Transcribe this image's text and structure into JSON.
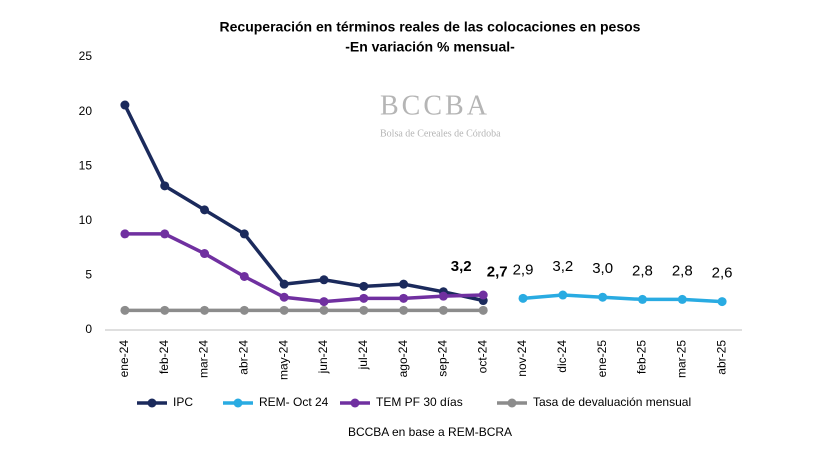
{
  "chart_data": {
    "type": "line",
    "title": "Recuperación en términos reales de las colocaciones en pesos",
    "subtitle": "-En variación % mensual-",
    "watermark": {
      "logo": "BCCBA",
      "text": "Bolsa de Cereales de Córdoba"
    },
    "source": "BCCBA en base a REM-BCRA",
    "categories": [
      "ene-24",
      "feb-24",
      "mar-24",
      "abr-24",
      "may-24",
      "jun-24",
      "jul-24",
      "ago-24",
      "sep-24",
      "oct-24",
      "nov-24",
      "dic-24",
      "ene-25",
      "feb-25",
      "mar-25",
      "abr-25"
    ],
    "series": [
      {
        "name": "IPC",
        "color": "#1b2a5c",
        "values": [
          20.6,
          13.2,
          11.0,
          8.8,
          4.2,
          4.6,
          4.0,
          4.2,
          3.5,
          2.7,
          null,
          null,
          null,
          null,
          null,
          null
        ],
        "value_labels": [
          null,
          null,
          null,
          null,
          null,
          null,
          null,
          null,
          null,
          "2,7",
          null,
          null,
          null,
          null,
          null,
          null
        ]
      },
      {
        "name": "REM- Oct 24",
        "color": "#29abe2",
        "values": [
          null,
          null,
          null,
          null,
          null,
          null,
          null,
          null,
          null,
          null,
          2.9,
          3.2,
          3.0,
          2.8,
          2.8,
          2.6
        ],
        "value_labels": [
          null,
          null,
          null,
          null,
          null,
          null,
          null,
          null,
          null,
          null,
          "2,9",
          "3,2",
          "3,0",
          "2,8",
          "2,8",
          "2,6"
        ]
      },
      {
        "name": "TEM PF 30 días",
        "color": "#7030a0",
        "values": [
          8.8,
          8.8,
          7.0,
          4.9,
          3.0,
          2.6,
          2.9,
          2.9,
          3.1,
          3.2,
          null,
          null,
          null,
          null,
          null,
          null
        ],
        "value_labels": [
          null,
          null,
          null,
          null,
          null,
          null,
          null,
          null,
          null,
          "3,2",
          null,
          null,
          null,
          null,
          null,
          null
        ]
      },
      {
        "name": "Tasa de devaluación mensual",
        "color": "#8c8c8c",
        "values": [
          1.8,
          1.8,
          1.8,
          1.8,
          1.8,
          1.8,
          1.8,
          1.8,
          1.8,
          1.8,
          null,
          null,
          null,
          null,
          null,
          null
        ]
      }
    ],
    "ylim": [
      0,
      25
    ],
    "yticks": [
      0,
      5,
      10,
      15,
      20,
      25
    ],
    "legend": "bottom"
  }
}
